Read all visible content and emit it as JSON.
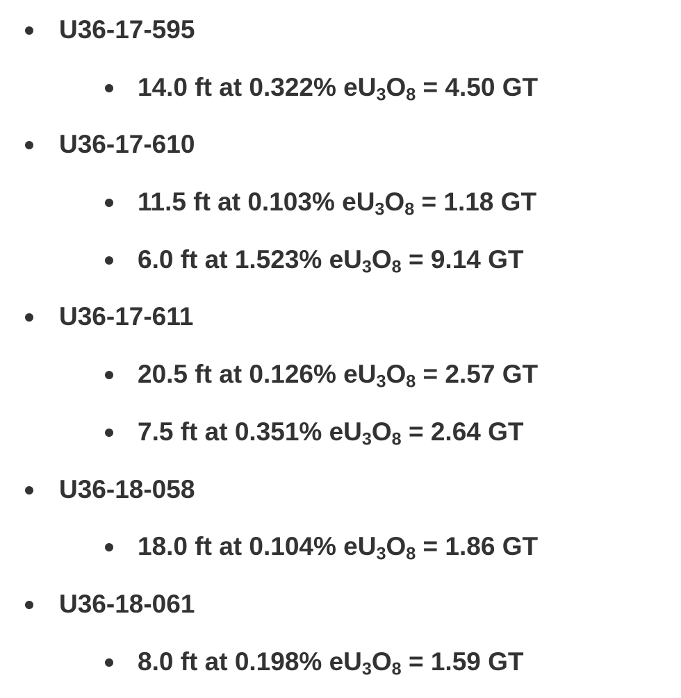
{
  "text_color": "#333333",
  "holes": [
    {
      "id": "U36-17-595",
      "intervals": [
        {
          "lead": "14.0 ft at 0.322% eU",
          "s1": "3",
          "mid": "O",
          "s2": "8",
          "tail": " = 4.50 GT"
        }
      ]
    },
    {
      "id": "U36-17-610",
      "intervals": [
        {
          "lead": "11.5 ft at 0.103% eU",
          "s1": "3",
          "mid": "O",
          "s2": "8",
          "tail": " = 1.18 GT"
        },
        {
          "lead": "6.0 ft at 1.523% eU",
          "s1": "3",
          "mid": "O",
          "s2": "8",
          "tail": " = 9.14 GT"
        }
      ]
    },
    {
      "id": "U36-17-611",
      "intervals": [
        {
          "lead": "20.5 ft at 0.126% eU",
          "s1": "3",
          "mid": "O",
          "s2": "8",
          "tail": " = 2.57 GT"
        },
        {
          "lead": "7.5 ft at 0.351% eU",
          "s1": "3",
          "mid": "O",
          "s2": "8",
          "tail": " = 2.64 GT"
        }
      ]
    },
    {
      "id": "U36-18-058",
      "intervals": [
        {
          "lead": "18.0 ft at 0.104% eU",
          "s1": "3",
          "mid": "O",
          "s2": "8",
          "tail": " = 1.86 GT"
        }
      ]
    },
    {
      "id": "U36-18-061",
      "intervals": [
        {
          "lead": "8.0 ft at 0.198% eU",
          "s1": "3",
          "mid": "O",
          "s2": "8",
          "tail": " = 1.59 GT"
        }
      ]
    }
  ]
}
